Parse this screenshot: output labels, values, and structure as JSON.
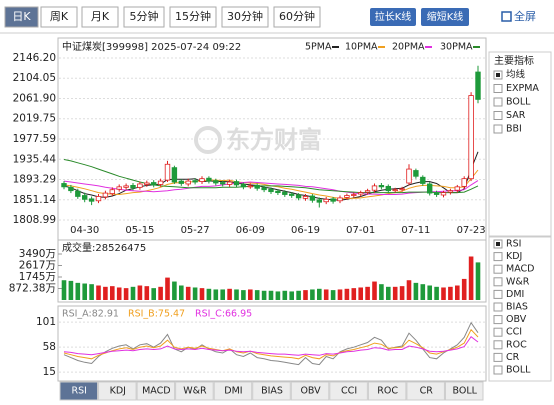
{
  "toolbar": {
    "tabs": [
      "日K",
      "周K",
      "月K",
      "5分钟",
      "15分钟",
      "30分钟",
      "60分钟"
    ],
    "selected": 0,
    "buttons": [
      "拉长K线",
      "缩短K线"
    ],
    "fullscreen": "全屏"
  },
  "header": {
    "title": "中证煤炭[399998] 2025-07-24 09:22"
  },
  "watermark": "东方财富",
  "side_panel": {
    "main_title": "主要指标",
    "main_options": [
      "均线",
      "EXPMA",
      "BOLL",
      "SAR",
      "BBI"
    ],
    "main_selected": 0,
    "sub_options": [
      "RSI",
      "KDJ",
      "MACD",
      "W&R",
      "DMI",
      "BIAS",
      "OBV",
      "CCI",
      "ROC",
      "CR",
      "BOLL"
    ],
    "sub_selected": 0
  },
  "bottom_tabs": {
    "tabs": [
      "RSI",
      "KDJ",
      "MACD",
      "W&R",
      "DMI",
      "BIAS",
      "OBV",
      "CCI",
      "ROC",
      "CR",
      "BOLL"
    ],
    "selected": 0
  },
  "chart_data": [
    {
      "type": "candlestick",
      "categories": [
        null,
        null,
        null,
        "04-30",
        null,
        null,
        null,
        null,
        null,
        null,
        null,
        "05-15",
        null,
        null,
        null,
        null,
        null,
        null,
        null,
        "05-27",
        null,
        null,
        null,
        null,
        null,
        null,
        null,
        "06-09",
        null,
        null,
        null,
        null,
        null,
        null,
        null,
        "06-19",
        null,
        null,
        null,
        null,
        null,
        null,
        null,
        "07-01",
        null,
        null,
        null,
        null,
        null,
        null,
        null,
        "07-11",
        null,
        null,
        null,
        null,
        null,
        null,
        null,
        "07-23",
        null
      ],
      "open": [
        1885,
        1877,
        1869,
        1860,
        1853,
        1849,
        1857,
        1864,
        1873,
        1877,
        1881,
        1877,
        1883,
        1887,
        1883,
        1892,
        1918,
        1890,
        1884,
        1891,
        1889,
        1896,
        1891,
        1887,
        1883,
        1889,
        1883,
        1879,
        1881,
        1876,
        1873,
        1869,
        1867,
        1863,
        1861,
        1854,
        1859,
        1851,
        1847,
        1853,
        1849,
        1856,
        1861,
        1863,
        1867,
        1871,
        1881,
        1879,
        1871,
        1873,
        1886,
        1912,
        1898,
        1884,
        1866,
        1861,
        1867,
        1871,
        1879,
        1895,
        2117
      ],
      "high": [
        1890,
        1882,
        1874,
        1866,
        1858,
        1863,
        1870,
        1877,
        1883,
        1885,
        1886,
        1889,
        1891,
        1892,
        1895,
        1932,
        1922,
        1894,
        1895,
        1896,
        1900,
        1900,
        1895,
        1891,
        1893,
        1893,
        1887,
        1885,
        1885,
        1880,
        1877,
        1873,
        1871,
        1867,
        1865,
        1863,
        1863,
        1856,
        1857,
        1857,
        1860,
        1864,
        1866,
        1870,
        1874,
        1885,
        1886,
        1883,
        1876,
        1878,
        1925,
        1916,
        1902,
        1888,
        1870,
        1870,
        1874,
        1882,
        1900,
        2075,
        2130
      ],
      "low": [
        1873,
        1865,
        1853,
        1846,
        1840,
        1844,
        1852,
        1859,
        1868,
        1872,
        1871,
        1872,
        1878,
        1877,
        1878,
        1888,
        1884,
        1880,
        1879,
        1883,
        1884,
        1885,
        1881,
        1879,
        1878,
        1877,
        1873,
        1874,
        1870,
        1867,
        1863,
        1861,
        1857,
        1855,
        1850,
        1849,
        1845,
        1835,
        1842,
        1843,
        1844,
        1851,
        1856,
        1858,
        1862,
        1866,
        1873,
        1865,
        1866,
        1868,
        1881,
        1895,
        1880,
        1860,
        1857,
        1856,
        1862,
        1866,
        1874,
        1890,
        2052
      ],
      "close": [
        1878,
        1870,
        1858,
        1852,
        1848,
        1858,
        1865,
        1872,
        1878,
        1880,
        1876,
        1884,
        1886,
        1882,
        1890,
        1925,
        1888,
        1885,
        1890,
        1888,
        1895,
        1890,
        1886,
        1884,
        1888,
        1882,
        1878,
        1880,
        1875,
        1872,
        1868,
        1866,
        1862,
        1860,
        1855,
        1858,
        1850,
        1846,
        1852,
        1848,
        1855,
        1860,
        1862,
        1866,
        1870,
        1880,
        1878,
        1870,
        1872,
        1874,
        1915,
        1900,
        1885,
        1865,
        1862,
        1866,
        1870,
        1878,
        1895,
        2068,
        2060
      ],
      "up_color": "#e02020",
      "down_color": "#1e9a3a",
      "series": [
        {
          "name": "5PMA",
          "color": "#222222",
          "values": [
            1880,
            1876,
            1870,
            1864,
            1861,
            1857,
            1856,
            1859,
            1864,
            1871,
            1874,
            1878,
            1881,
            1882,
            1884,
            1893,
            1894,
            1894,
            1894,
            1895,
            1889,
            1890,
            1890,
            1889,
            1889,
            1886,
            1884,
            1882,
            1881,
            1877,
            1875,
            1872,
            1869,
            1866,
            1862,
            1860,
            1857,
            1854,
            1852,
            1851,
            1850,
            1852,
            1855,
            1858,
            1863,
            1868,
            1871,
            1873,
            1874,
            1875,
            1882,
            1886,
            1889,
            1889,
            1885,
            1876,
            1866,
            1866,
            1874,
            1915,
            1951
          ]
        },
        {
          "name": "10PMA",
          "color": "#f0a020",
          "values": [
            1882,
            1880,
            1877,
            1874,
            1870,
            1866,
            1864,
            1863,
            1862,
            1864,
            1866,
            1867,
            1870,
            1873,
            1877,
            1883,
            1886,
            1887,
            1888,
            1889,
            1891,
            1892,
            1892,
            1891,
            1892,
            1888,
            1887,
            1886,
            1885,
            1883,
            1880,
            1878,
            1875,
            1873,
            1870,
            1867,
            1864,
            1861,
            1859,
            1856,
            1854,
            1854,
            1854,
            1855,
            1857,
            1859,
            1861,
            1864,
            1866,
            1869,
            1875,
            1879,
            1881,
            1881,
            1880,
            1879,
            1876,
            1876,
            1878,
            1895,
            1913
          ]
        },
        {
          "name": "20PMA",
          "color": "#e030e0",
          "values": [
            1890,
            1888,
            1886,
            1884,
            1882,
            1880,
            1877,
            1875,
            1873,
            1871,
            1870,
            1869,
            1869,
            1868,
            1869,
            1870,
            1872,
            1873,
            1875,
            1877,
            1879,
            1879,
            1880,
            1882,
            1884,
            1886,
            1887,
            1888,
            1887,
            1886,
            1885,
            1884,
            1883,
            1882,
            1881,
            1879,
            1878,
            1876,
            1874,
            1872,
            1869,
            1867,
            1865,
            1864,
            1863,
            1863,
            1862,
            1862,
            1862,
            1863,
            1865,
            1866,
            1867,
            1868,
            1868,
            1869,
            1870,
            1870,
            1872,
            1882,
            1891
          ]
        },
        {
          "name": "30PMA",
          "color": "#2a8a2a",
          "values": [
            1935,
            1932,
            1928,
            1924,
            1920,
            1915,
            1910,
            1905,
            1900,
            1896,
            1892,
            1888,
            1885,
            1882,
            1880,
            1879,
            1878,
            1877,
            1876,
            1876,
            1876,
            1876,
            1876,
            1877,
            1877,
            1877,
            1878,
            1879,
            1880,
            1880,
            1880,
            1880,
            1879,
            1878,
            1877,
            1876,
            1874,
            1872,
            1871,
            1870,
            1869,
            1868,
            1867,
            1866,
            1866,
            1866,
            1866,
            1866,
            1866,
            1866,
            1867,
            1867,
            1867,
            1867,
            1866,
            1866,
            1866,
            1866,
            1867,
            1873,
            1880
          ]
        }
      ],
      "ylim": [
        1808.99,
        2146.2
      ],
      "yticks": [
        1808.99,
        1851.14,
        1893.29,
        1935.44,
        1977.59,
        2019.75,
        {
          "value": 2061.9,
          "label": "2061.90"
        },
        2104.05,
        {
          "value": 2146.2,
          "label": "2146.20"
        }
      ],
      "grid": true
    },
    {
      "type": "bar",
      "title": "成交量:28526475",
      "values": [
        1500,
        1450,
        1300,
        1250,
        1200,
        1100,
        1000,
        1050,
        950,
        900,
        1000,
        1100,
        1050,
        900,
        1000,
        1700,
        1400,
        1100,
        1000,
        950,
        900,
        850,
        800,
        800,
        850,
        800,
        750,
        800,
        750,
        700,
        700,
        650,
        700,
        650,
        700,
        750,
        800,
        850,
        800,
        750,
        800,
        850,
        900,
        950,
        1000,
        1400,
        1200,
        1000,
        1000,
        1050,
        1500,
        1300,
        1200,
        1100,
        1000,
        950,
        1000,
        1100,
        1600,
        3300,
        2852.6475
      ],
      "ylim": [
        0,
        3490
      ],
      "yticks": [
        {
          "value": 872.38,
          "label": "872.38万"
        },
        {
          "value": 1745,
          "label": "1745万"
        },
        {
          "value": 2617,
          "label": "2617万"
        },
        {
          "value": 3490,
          "label": "3490万"
        }
      ],
      "grid": false
    },
    {
      "type": "line",
      "legend_labels": [
        "RSI_A:82.91",
        "RSI_B:75.47",
        "RSI_C:66.95"
      ],
      "series": [
        {
          "name": "RSI_A",
          "color": "#888888",
          "values": [
            45,
            40,
            35,
            32,
            30,
            42,
            50,
            56,
            60,
            62,
            55,
            62,
            64,
            58,
            65,
            80,
            55,
            50,
            58,
            54,
            62,
            55,
            50,
            48,
            55,
            45,
            42,
            48,
            40,
            38,
            35,
            34,
            32,
            30,
            28,
            40,
            30,
            28,
            42,
            38,
            50,
            55,
            58,
            62,
            66,
            75,
            70,
            55,
            58,
            60,
            82,
            70,
            55,
            40,
            38,
            48,
            55,
            62,
            75,
            100,
            82.91
          ]
        },
        {
          "name": "RSI_B",
          "color": "#f0a020",
          "values": [
            48,
            45,
            42,
            40,
            38,
            44,
            48,
            52,
            55,
            57,
            54,
            58,
            60,
            57,
            60,
            70,
            58,
            55,
            58,
            56,
            60,
            56,
            54,
            52,
            55,
            50,
            48,
            51,
            47,
            45,
            43,
            42,
            41,
            40,
            38,
            44,
            40,
            38,
            45,
            43,
            49,
            52,
            54,
            57,
            60,
            65,
            63,
            56,
            57,
            58,
            70,
            64,
            57,
            48,
            46,
            50,
            54,
            58,
            65,
            88,
            75.47
          ]
        },
        {
          "name": "RSI_C",
          "color": "#e030e0",
          "values": [
            50,
            49,
            47,
            46,
            45,
            47,
            49,
            51,
            52,
            53,
            52,
            54,
            55,
            54,
            55,
            60,
            55,
            54,
            55,
            54,
            56,
            54,
            53,
            52,
            53,
            51,
            50,
            51,
            49,
            48,
            47,
            46,
            46,
            45,
            44,
            46,
            45,
            44,
            47,
            46,
            48,
            50,
            51,
            53,
            54,
            57,
            56,
            53,
            54,
            54,
            60,
            58,
            55,
            51,
            50,
            51,
            53,
            55,
            59,
            76,
            66.95
          ]
        }
      ],
      "ylim": [
        5,
        115
      ],
      "yticks": [
        15,
        58,
        101
      ],
      "grid": true
    }
  ]
}
